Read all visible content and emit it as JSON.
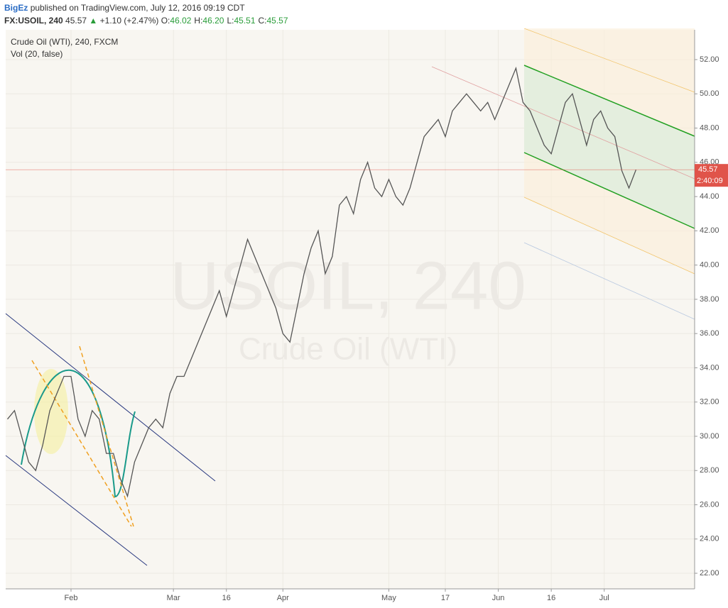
{
  "header": {
    "author": "BigEz",
    "published": "published on TradingView.com, July 12, 2016 09:19 CDT",
    "symbol": "FX:USOIL, 240",
    "price": "45.57",
    "change": "+1.10 (+2.47%)",
    "ohlc": [
      {
        "label": "O:",
        "value": "46.02"
      },
      {
        "label": "H:",
        "value": "46.20"
      },
      {
        "label": "L:",
        "value": "45.51"
      },
      {
        "label": "C:",
        "value": "45.57"
      }
    ]
  },
  "chart_data": {
    "type": "line",
    "title": "Crude Oil (WTI), 240, FXCM",
    "subtitle": "Vol (20, false)",
    "watermark": [
      "USOIL, 240",
      "Crude Oil (WTI)"
    ],
    "x": [
      14,
      16,
      18,
      20,
      22,
      24,
      26,
      28,
      30,
      32,
      34,
      36,
      38,
      40,
      42,
      44,
      46,
      48,
      50,
      52,
      54,
      56,
      58,
      60,
      62,
      64,
      66,
      68,
      70,
      72,
      74,
      76,
      78,
      80,
      82,
      84,
      86,
      88,
      90,
      92,
      94,
      96,
      98,
      100,
      102,
      104,
      106,
      108,
      110,
      112,
      114,
      116,
      118,
      120,
      122,
      124,
      126,
      128,
      130,
      132,
      134,
      136,
      138,
      140,
      142,
      144,
      146,
      148,
      150,
      152,
      154,
      156,
      158,
      160,
      162,
      164,
      166,
      168,
      170,
      172,
      174,
      176,
      178,
      180,
      182,
      184,
      186,
      188,
      190,
      192
    ],
    "series": [
      {
        "name": "FX:USOIL",
        "color": "#555555",
        "values": [
          31,
          31.5,
          30,
          28.5,
          28,
          29.5,
          31.5,
          32.5,
          33.5,
          33.5,
          31,
          30,
          31.5,
          31,
          29,
          29,
          27.5,
          26.5,
          28.5,
          29.5,
          30.5,
          31,
          30.5,
          32.5,
          33.5,
          33.5,
          34.5,
          35.5,
          36.5,
          37.5,
          38.5,
          37,
          38.5,
          40,
          41.5,
          40.5,
          39.5,
          38.5,
          37.5,
          36,
          35.5,
          37.5,
          39.5,
          41,
          42,
          39.5,
          40.5,
          43.5,
          44,
          43,
          45,
          46,
          44.5,
          44,
          45,
          44,
          43.5,
          44.5,
          46,
          47.5,
          48,
          48.5,
          47.5,
          49,
          49.5,
          50,
          49.5,
          49,
          49.5,
          48.5,
          49.5,
          50.5,
          51.5,
          49.5,
          49,
          48,
          47,
          46.5,
          48,
          49.5,
          50,
          48.5,
          47,
          48.5,
          49,
          48,
          47.5,
          45.5,
          44.5,
          45.57
        ]
      }
    ],
    "last_price": 45.57,
    "countdown": "2:40:09",
    "price_color": "#e0544a",
    "xlim": [
      13.5,
      208.6
    ],
    "ylim": [
      21.09,
      53.74
    ],
    "xticks": [
      {
        "value": 32,
        "label": "Feb"
      },
      {
        "value": 61,
        "label": "Mar"
      },
      {
        "value": 76,
        "label": "16"
      },
      {
        "value": 92,
        "label": "Apr"
      },
      {
        "value": 122,
        "label": "May"
      },
      {
        "value": 138,
        "label": "17"
      },
      {
        "value": 153,
        "label": "Jun"
      },
      {
        "value": 168,
        "label": "16"
      },
      {
        "value": 183,
        "label": "Jul"
      }
    ],
    "yticks": [
      {
        "value": 22,
        "label": "22.00"
      },
      {
        "value": 24,
        "label": "24.00"
      },
      {
        "value": 26,
        "label": "26.00"
      },
      {
        "value": 28,
        "label": "28.00"
      },
      {
        "value": 30,
        "label": "30.00"
      },
      {
        "value": 32,
        "label": "32.00"
      },
      {
        "value": 34,
        "label": "34.00"
      },
      {
        "value": 36,
        "label": "36.00"
      },
      {
        "value": 38,
        "label": "38.00"
      },
      {
        "value": 40,
        "label": "40.00"
      },
      {
        "value": 42,
        "label": "42.00"
      },
      {
        "value": 44,
        "label": "44.00"
      },
      {
        "value": 46,
        "label": "46.00"
      },
      {
        "value": 48,
        "label": "48.00"
      },
      {
        "value": 50,
        "label": "50.00"
      },
      {
        "value": 52,
        "label": "52.00"
      }
    ],
    "grid": true
  }
}
